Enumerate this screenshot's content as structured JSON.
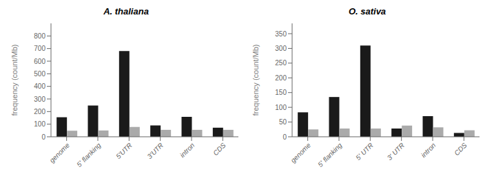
{
  "chart_data": [
    {
      "type": "bar",
      "title": "A. thaliana",
      "ylabel": "frequency (count/Mb)",
      "categories": [
        "genome",
        "5' flanking",
        "5'UTR",
        "3'UTR",
        "intron",
        "CDS"
      ],
      "series": [
        {
          "color": "#1a1a1a",
          "values": [
            155,
            248,
            680,
            90,
            158,
            72
          ]
        },
        {
          "color": "#aaaaaa",
          "values": [
            48,
            50,
            78,
            55,
            55,
            55
          ]
        }
      ],
      "ylim": [
        0,
        900
      ],
      "yticks": [
        0,
        100,
        200,
        300,
        400,
        500,
        600,
        700,
        800
      ]
    },
    {
      "type": "bar",
      "title": "O. sativa",
      "ylabel": "frequency (count/Mb)",
      "categories": [
        "genome",
        "5' flanking",
        "5' UTR",
        "3' UTR",
        "intron",
        "CDS"
      ],
      "series": [
        {
          "color": "#1a1a1a",
          "values": [
            83,
            135,
            310,
            28,
            70,
            13
          ]
        },
        {
          "color": "#aaaaaa",
          "values": [
            25,
            28,
            28,
            38,
            32,
            22
          ]
        }
      ],
      "ylim": [
        0,
        385
      ],
      "yticks": [
        0,
        50,
        100,
        150,
        200,
        250,
        300,
        350
      ]
    }
  ]
}
